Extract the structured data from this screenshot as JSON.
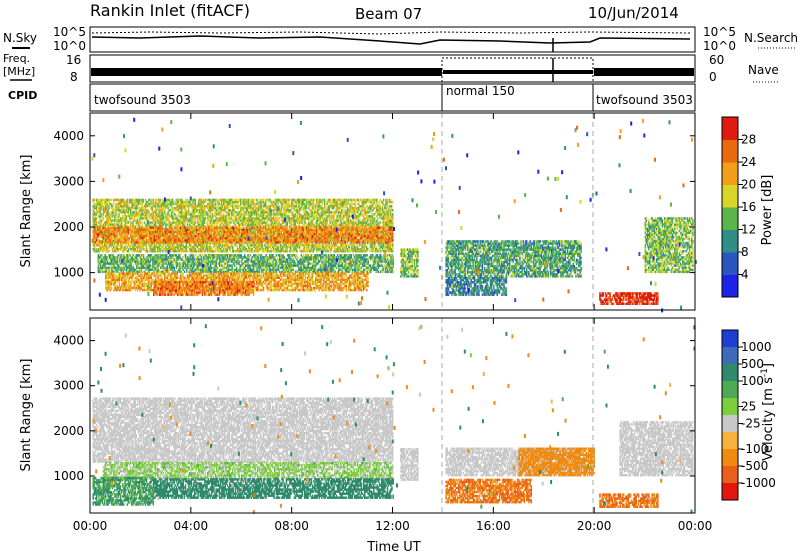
{
  "header": {
    "site_title": "Rankin Inlet (fitACF)",
    "beam_label": "Beam 07",
    "date_label": "10/Jun/2014"
  },
  "noise_panel": {
    "left_label": "N.Sky",
    "right_label": "N.Search",
    "tick_high": "10^5",
    "tick_low": "10^0"
  },
  "freq_panel": {
    "label_line1": "Freq.",
    "label_line2": "[MHz]",
    "tick_high": "16",
    "tick_low": "8",
    "right_label": "Nave",
    "right_tick_high": "60",
    "right_tick_low": "0"
  },
  "cpid_panel": {
    "label": "CPID",
    "segments": [
      {
        "label": "twofsound 3503",
        "start": 0,
        "end": 14
      },
      {
        "label": "normal 150",
        "start": 14,
        "end": 20
      },
      {
        "label": "twofsound 3503",
        "start": 20,
        "end": 24
      }
    ]
  },
  "chart_data": [
    {
      "type": "heatmap",
      "quantity": "Power",
      "ylabel": "Slant Range [km]",
      "xlabel": "Time UT",
      "ylim": [
        180,
        4500
      ],
      "xlim": [
        0,
        24
      ],
      "y_ticks": [
        1000,
        2000,
        3000,
        4000
      ],
      "x_ticks": [
        "00:00",
        "04:00",
        "08:00",
        "12:00",
        "16:00",
        "20:00",
        "00:00"
      ],
      "colorbar": {
        "label": "Power [dB]",
        "ticks": [
          "4",
          "8",
          "12",
          "16",
          "20",
          "24",
          "28"
        ],
        "colors": [
          "#1d22e6",
          "#2d55bf",
          "#2f8f87",
          "#5cb54a",
          "#d9d42a",
          "#f2a01a",
          "#ea6a10",
          "#e21b12"
        ]
      },
      "bands": [
        {
          "t0": 0.1,
          "t1": 12.0,
          "r0": 1450,
          "r1": 2600,
          "v": 17
        },
        {
          "t0": 0.1,
          "t1": 12.0,
          "r0": 1650,
          "r1": 2000,
          "v": 24
        },
        {
          "t0": 0.3,
          "t1": 12.0,
          "r0": 1000,
          "r1": 1400,
          "v": 13
        },
        {
          "t0": 0.6,
          "t1": 11.0,
          "r0": 600,
          "r1": 1000,
          "v": 22
        },
        {
          "t0": 2.5,
          "t1": 6.5,
          "r0": 500,
          "r1": 800,
          "v": 25
        },
        {
          "t0": 12.3,
          "t1": 13.0,
          "r0": 900,
          "r1": 1500,
          "v": 15
        },
        {
          "t0": 14.1,
          "t1": 19.5,
          "r0": 900,
          "r1": 1700,
          "v": 12
        },
        {
          "t0": 14.1,
          "t1": 16.5,
          "r0": 500,
          "r1": 900,
          "v": 9
        },
        {
          "t0": 20.2,
          "t1": 22.5,
          "r0": 300,
          "r1": 550,
          "v": 30
        },
        {
          "t0": 22.0,
          "t1": 23.9,
          "r0": 1000,
          "r1": 2200,
          "v": 15
        }
      ]
    },
    {
      "type": "heatmap",
      "quantity": "Velocity",
      "ylabel": "Slant Range [km]",
      "xlabel": "Time UT",
      "ylim": [
        180,
        4500
      ],
      "xlim": [
        0,
        24
      ],
      "y_ticks": [
        1000,
        2000,
        3000,
        4000
      ],
      "x_ticks": [
        "00:00",
        "04:00",
        "08:00",
        "12:00",
        "16:00",
        "20:00",
        "00:00"
      ],
      "colorbar": {
        "label": "Velocity [m s",
        "label_sup": "-1",
        "label_end": "]",
        "ticks": [
          "1000",
          "500",
          "100",
          "25",
          "-25",
          "-100",
          "-500",
          "-1000"
        ],
        "colors": [
          "#1f3fd4",
          "#3e6ab8",
          "#2e8a6a",
          "#4faa55",
          "#7dce3c",
          "#c8c8c8",
          "#f5b23c",
          "#f08a10",
          "#e8601a",
          "#e01810"
        ]
      },
      "bands": [
        {
          "t0": 0.1,
          "t1": 12.0,
          "r0": 1300,
          "r1": 2700,
          "v": 0
        },
        {
          "t0": 0.5,
          "t1": 12.0,
          "r0": 950,
          "r1": 1300,
          "v": 30
        },
        {
          "t0": 2.5,
          "t1": 12.0,
          "r0": 500,
          "r1": 950,
          "v": 150
        },
        {
          "t0": 0.1,
          "t1": 2.5,
          "r0": 350,
          "r1": 950,
          "v": 60
        },
        {
          "t0": 12.3,
          "t1": 13.0,
          "r0": 900,
          "r1": 1600,
          "v": 0
        },
        {
          "t0": 14.1,
          "t1": 19.5,
          "r0": 1000,
          "r1": 1600,
          "v": 0
        },
        {
          "t0": 14.1,
          "t1": 17.5,
          "r0": 400,
          "r1": 900,
          "v": -300
        },
        {
          "t0": 17.0,
          "t1": 20.0,
          "r0": 1000,
          "r1": 1600,
          "v": -200
        },
        {
          "t0": 20.2,
          "t1": 22.5,
          "r0": 300,
          "r1": 600,
          "v": -300
        },
        {
          "t0": 21.0,
          "t1": 23.9,
          "r0": 1000,
          "r1": 2200,
          "v": 0
        }
      ]
    }
  ]
}
